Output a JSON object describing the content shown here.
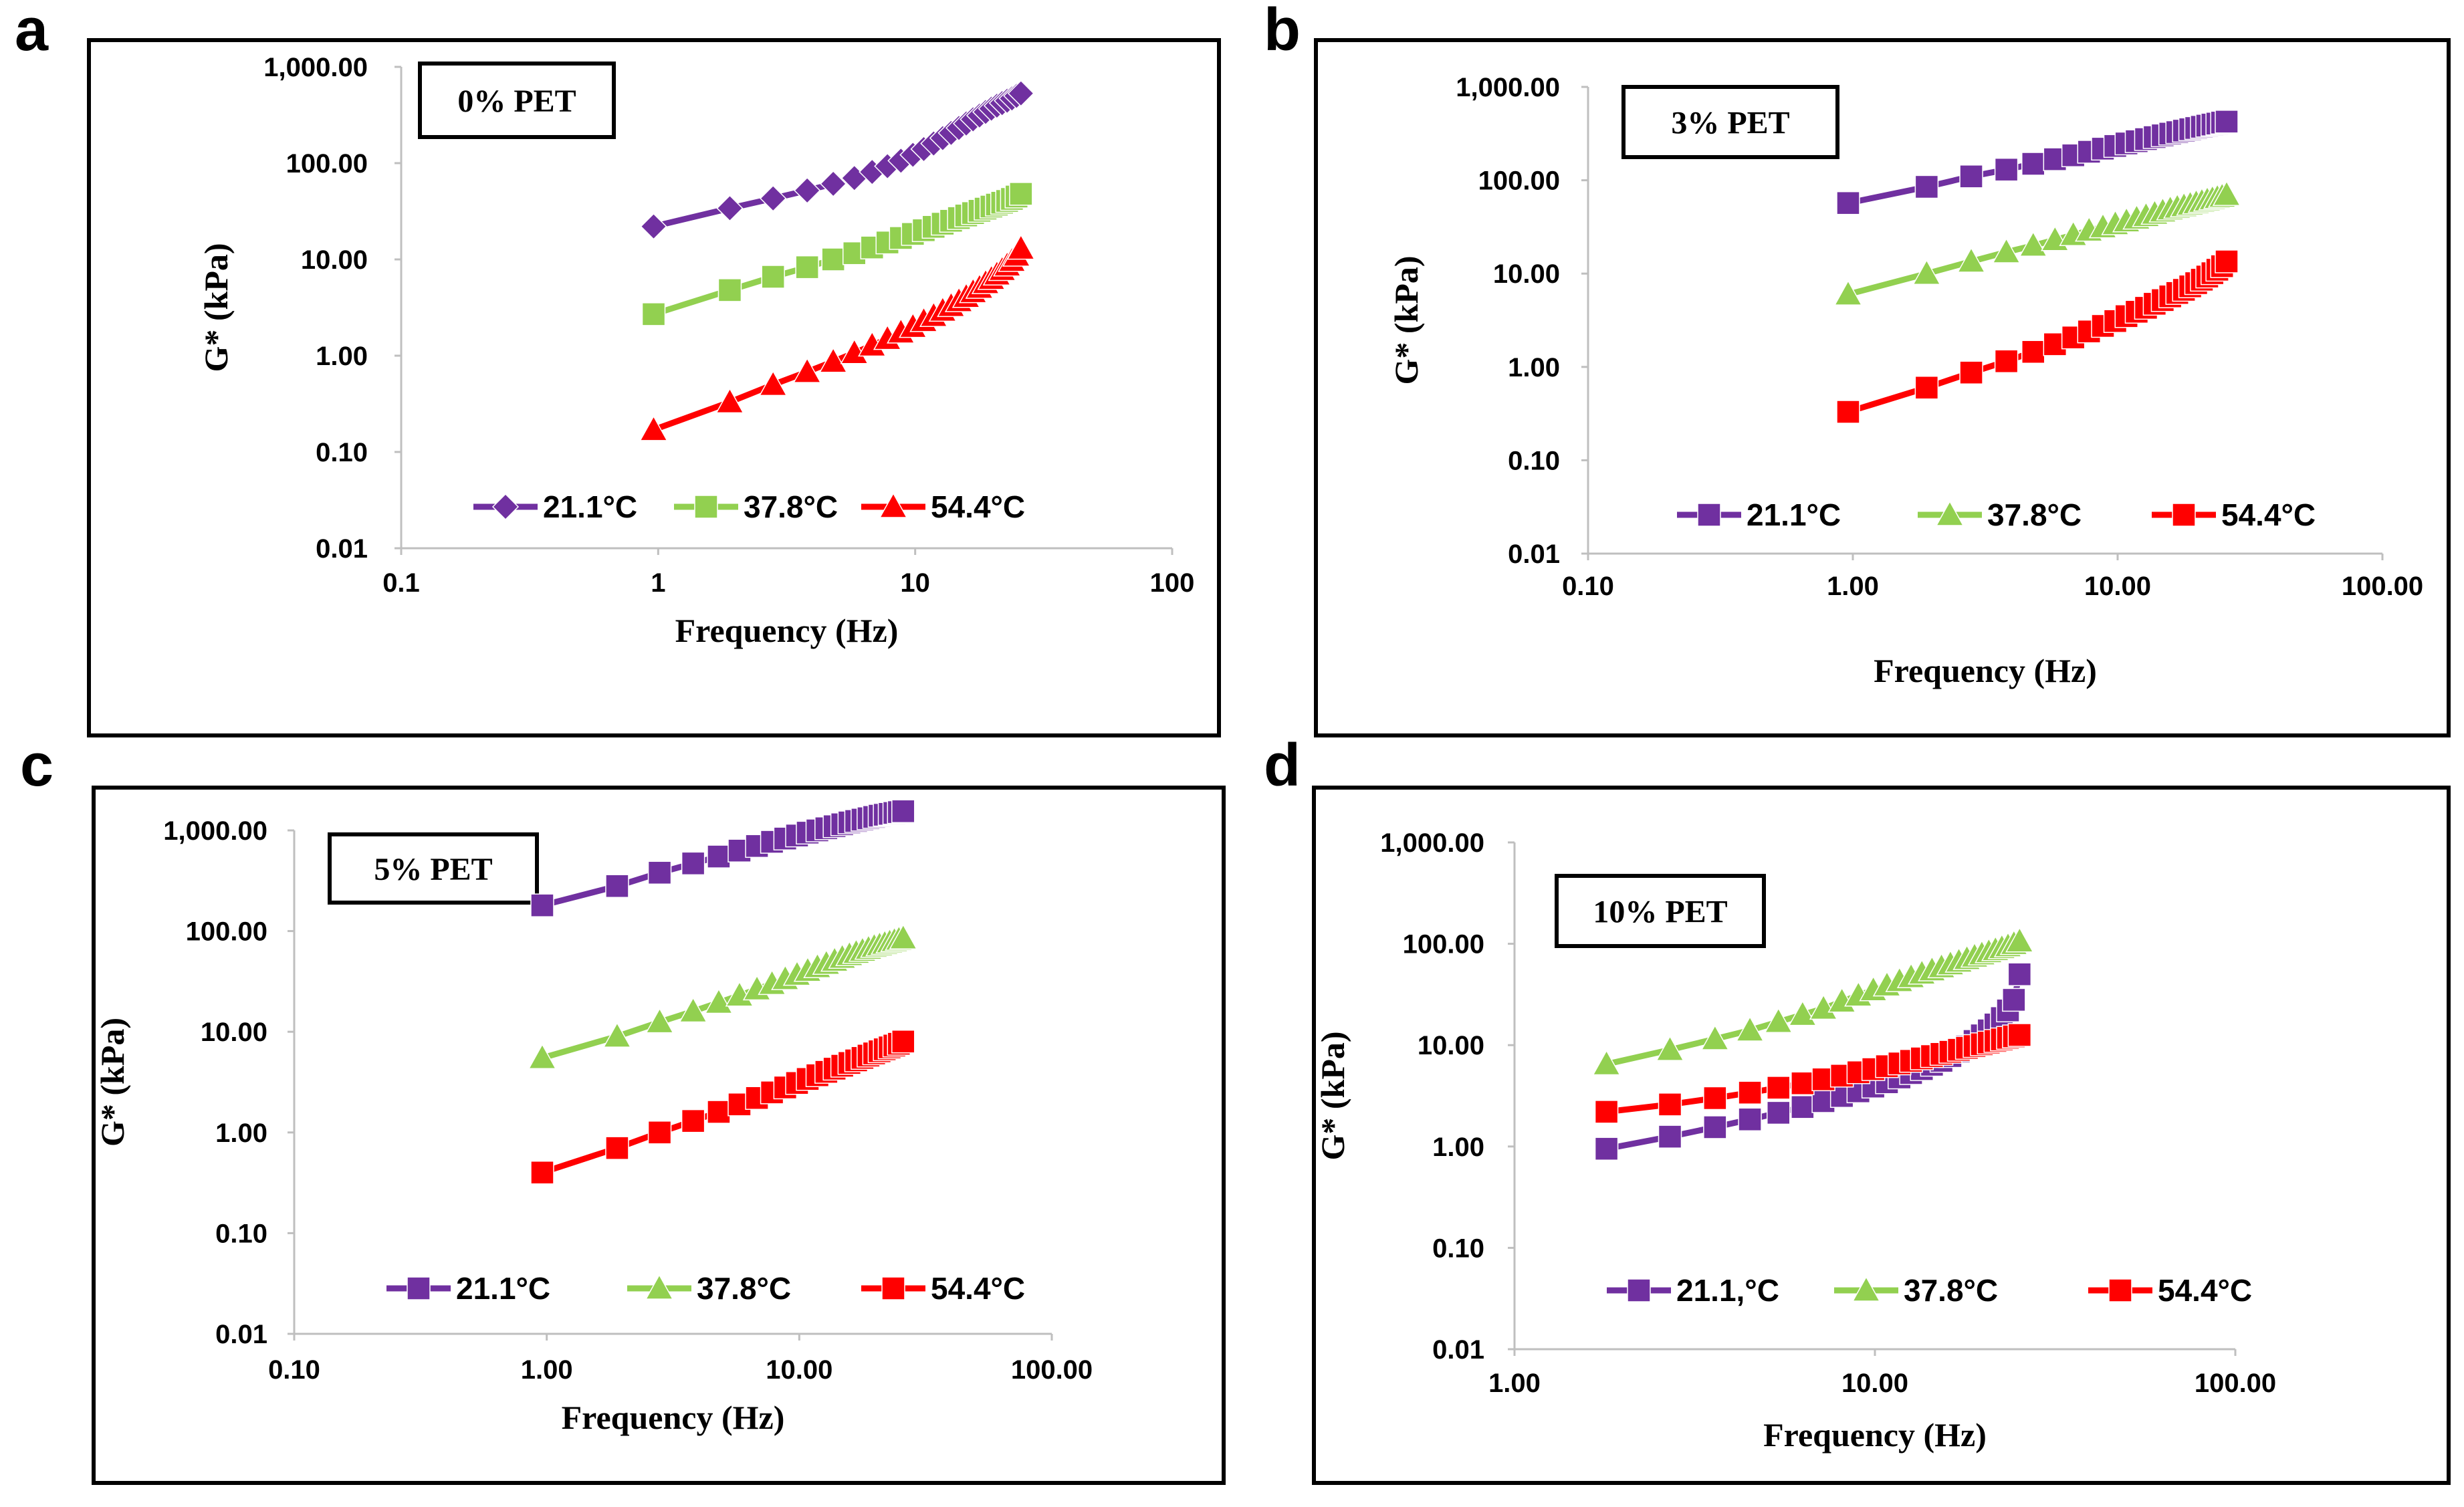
{
  "figure": {
    "panels": [
      {
        "letter": "a",
        "label": "0% PET"
      },
      {
        "letter": "b",
        "label": "3% PET"
      },
      {
        "letter": "c",
        "label": "5% PET"
      },
      {
        "letter": "d",
        "label": "10% PET"
      }
    ]
  },
  "colors": {
    "series_21": "#7030a0",
    "series_37": "#92d050",
    "series_54": "#ff0000",
    "axis": "#bfbfbf",
    "frame": "#000000"
  },
  "chart_data": [
    {
      "type": "line",
      "panel": "a",
      "title": "0% PET",
      "xlabel": "Frequency (Hz)",
      "ylabel": "G* (kPa)",
      "xscale": "log",
      "yscale": "log",
      "xlim": [
        0.1,
        100
      ],
      "ylim": [
        0.01,
        1000
      ],
      "xticks": [
        "0.1",
        "1",
        "10",
        "100"
      ],
      "yticks": [
        "0.01",
        "0.10",
        "1.00",
        "10.00",
        "100.00",
        "1,000.00"
      ],
      "legend_position": "bottom-center",
      "series": [
        {
          "name": "21.1°C",
          "marker": "diamond",
          "color": "#7030a0",
          "x": [
            0.96,
            1.9,
            2.8,
            3.8,
            4.8,
            5.8,
            6.8,
            7.8,
            8.8,
            9.8,
            10.8,
            11.8,
            12.8,
            13.8,
            14.8,
            15.8,
            16.8,
            17.8,
            18.8,
            19.8,
            20.8,
            21.8,
            22.8,
            23.8,
            24.8,
            25.8
          ],
          "y": [
            22,
            34,
            43,
            52,
            61,
            70,
            81,
            93,
            106,
            122,
            140,
            160,
            182,
            206,
            232,
            258,
            285,
            312,
            340,
            368,
            395,
            420,
            445,
            470,
            500,
            530
          ]
        },
        {
          "name": "37.8°C",
          "marker": "square",
          "color": "#92d050",
          "x": [
            0.96,
            1.9,
            2.8,
            3.8,
            4.8,
            5.8,
            6.8,
            7.8,
            8.8,
            9.8,
            10.8,
            11.8,
            12.8,
            13.8,
            14.8,
            15.8,
            16.8,
            17.8,
            18.8,
            19.8,
            20.8,
            21.8,
            22.8,
            23.8,
            24.8,
            25.8
          ],
          "y": [
            2.7,
            4.8,
            6.6,
            8.3,
            10.0,
            11.6,
            13.3,
            15.0,
            16.7,
            18.4,
            20.1,
            21.8,
            23.5,
            25.2,
            26.9,
            28.6,
            30.3,
            32.0,
            33.7,
            35.4,
            37.1,
            38.8,
            40.5,
            42.5,
            45.0,
            48.0
          ]
        },
        {
          "name": "54.4°C",
          "marker": "triangle",
          "color": "#ff0000",
          "x": [
            0.96,
            1.9,
            2.8,
            3.8,
            4.8,
            5.8,
            6.8,
            7.8,
            8.8,
            9.8,
            10.8,
            11.8,
            12.8,
            13.8,
            14.8,
            15.8,
            16.8,
            17.8,
            18.8,
            19.8,
            20.8,
            21.8,
            22.8,
            23.8,
            24.8,
            25.8
          ],
          "y": [
            0.17,
            0.33,
            0.5,
            0.68,
            0.87,
            1.07,
            1.28,
            1.5,
            1.75,
            2.0,
            2.3,
            2.6,
            2.95,
            3.3,
            3.7,
            4.1,
            4.6,
            5.1,
            5.7,
            6.3,
            7.0,
            7.8,
            8.7,
            9.7,
            11.0,
            13.0
          ]
        }
      ]
    },
    {
      "type": "line",
      "panel": "b",
      "title": "3% PET",
      "xlabel": "Frequency (Hz)",
      "ylabel": "G* (kPa)",
      "xscale": "log",
      "yscale": "log",
      "xlim": [
        0.1,
        100
      ],
      "ylim": [
        0.01,
        1000
      ],
      "xticks": [
        "0.10",
        "1.00",
        "10.00",
        "100.00"
      ],
      "yticks": [
        "0.01",
        "0.10",
        "1.00",
        "10.00",
        "100.00",
        "1,000.00"
      ],
      "legend_position": "bottom-center",
      "series": [
        {
          "name": "21.1°C",
          "marker": "square",
          "color": "#7030a0",
          "x": [
            0.96,
            1.9,
            2.8,
            3.8,
            4.8,
            5.8,
            6.8,
            7.8,
            8.8,
            9.8,
            10.8,
            11.8,
            12.8,
            13.8,
            14.8,
            15.8,
            16.8,
            17.8,
            18.8,
            19.8,
            20.8,
            21.8,
            22.8,
            23.8,
            24.8,
            25.8
          ],
          "y": [
            57,
            85,
            110,
            130,
            150,
            168,
            185,
            202,
            218,
            233,
            248,
            262,
            276,
            290,
            303,
            316,
            328,
            340,
            352,
            363,
            374,
            385,
            395,
            405,
            415,
            425
          ]
        },
        {
          "name": "37.8°C",
          "marker": "triangle",
          "color": "#92d050",
          "x": [
            0.96,
            1.9,
            2.8,
            3.8,
            4.8,
            5.8,
            6.8,
            7.8,
            8.8,
            9.8,
            10.8,
            11.8,
            12.8,
            13.8,
            14.8,
            15.8,
            16.8,
            17.8,
            18.8,
            19.8,
            20.8,
            21.8,
            22.8,
            23.8,
            24.8,
            25.8
          ],
          "y": [
            6,
            10,
            13.5,
            17,
            20,
            23,
            26,
            29,
            31.5,
            34,
            36.5,
            39,
            41.5,
            44,
            46.5,
            49,
            51,
            53,
            55,
            57,
            59,
            61,
            63,
            65,
            67,
            70
          ]
        },
        {
          "name": "54.4°C",
          "marker": "square",
          "color": "#ff0000",
          "x": [
            0.96,
            1.9,
            2.8,
            3.8,
            4.8,
            5.8,
            6.8,
            7.8,
            8.8,
            9.8,
            10.8,
            11.8,
            12.8,
            13.8,
            14.8,
            15.8,
            16.8,
            17.8,
            18.8,
            19.8,
            20.8,
            21.8,
            22.8,
            23.8,
            24.8,
            25.8
          ],
          "y": [
            0.33,
            0.6,
            0.87,
            1.15,
            1.45,
            1.75,
            2.07,
            2.4,
            2.75,
            3.1,
            3.5,
            3.9,
            4.3,
            4.75,
            5.2,
            5.7,
            6.2,
            6.7,
            7.3,
            7.9,
            8.6,
            9.3,
            10.1,
            11.0,
            12.0,
            13.5
          ]
        }
      ]
    },
    {
      "type": "line",
      "panel": "c",
      "title": "5% PET",
      "xlabel": "Frequency (Hz)",
      "ylabel": "G* (kPa)",
      "xscale": "log",
      "yscale": "log",
      "xlim": [
        0.1,
        100
      ],
      "ylim": [
        0.01,
        1000
      ],
      "xticks": [
        "0.10",
        "1.00",
        "10.00",
        "100.00"
      ],
      "yticks": [
        "0.01",
        "0.10",
        "1.00",
        "10.00",
        "100.00",
        "1,000.00"
      ],
      "legend_position": "bottom-center",
      "series": [
        {
          "name": "21.1°C",
          "marker": "square",
          "color": "#7030a0",
          "x": [
            0.96,
            1.9,
            2.8,
            3.8,
            4.8,
            5.8,
            6.8,
            7.8,
            8.8,
            9.8,
            10.8,
            11.8,
            12.8,
            13.8,
            14.8,
            15.8,
            16.8,
            17.8,
            18.8,
            19.8,
            20.8,
            21.8,
            22.8,
            23.8,
            24.8,
            25.8
          ],
          "y": [
            180,
            280,
            380,
            470,
            550,
            630,
            700,
            770,
            830,
            890,
            950,
            1000,
            1050,
            1100,
            1150,
            1200,
            1240,
            1280,
            1320,
            1360,
            1400,
            1430,
            1460,
            1490,
            1520,
            1550
          ]
        },
        {
          "name": "37.8°C",
          "marker": "triangle",
          "color": "#92d050",
          "x": [
            0.96,
            1.9,
            2.8,
            3.8,
            4.8,
            5.8,
            6.8,
            7.8,
            8.8,
            9.8,
            10.8,
            11.8,
            12.8,
            13.8,
            14.8,
            15.8,
            16.8,
            17.8,
            18.8,
            19.8,
            20.8,
            21.8,
            22.8,
            23.8,
            24.8,
            25.8
          ],
          "y": [
            5.5,
            9,
            12.5,
            16,
            19.5,
            23,
            26.5,
            30,
            33.5,
            37,
            40.5,
            44,
            47.5,
            51,
            54.5,
            58,
            61,
            64,
            67,
            70,
            72.5,
            75,
            77.5,
            80,
            82.5,
            85
          ]
        },
        {
          "name": "54.4°C",
          "marker": "square",
          "color": "#ff0000",
          "x": [
            0.96,
            1.9,
            2.8,
            3.8,
            4.8,
            5.8,
            6.8,
            7.8,
            8.8,
            9.8,
            10.8,
            11.8,
            12.8,
            13.8,
            14.8,
            15.8,
            16.8,
            17.8,
            18.8,
            19.8,
            20.8,
            21.8,
            22.8,
            23.8,
            24.8,
            25.8
          ],
          "y": [
            0.4,
            0.7,
            1.0,
            1.3,
            1.6,
            1.9,
            2.2,
            2.5,
            2.8,
            3.1,
            3.4,
            3.7,
            4.0,
            4.3,
            4.6,
            4.9,
            5.2,
            5.5,
            5.8,
            6.1,
            6.4,
            6.7,
            7.0,
            7.3,
            7.6,
            8.0
          ]
        }
      ]
    },
    {
      "type": "line",
      "panel": "d",
      "title": "10% PET",
      "xlabel": "Frequency (Hz)",
      "ylabel": "G* (kPa)",
      "xscale": "log",
      "yscale": "log",
      "xlim": [
        1,
        100
      ],
      "ylim": [
        0.01,
        1000
      ],
      "xticks": [
        "1.00",
        "10.00",
        "100.00"
      ],
      "yticks": [
        "0.01",
        "0.10",
        "1.00",
        "10.00",
        "100.00",
        "1,000.00"
      ],
      "legend_position": "bottom-center",
      "series": [
        {
          "name": "21.1,°C",
          "marker": "square",
          "color": "#7030a0",
          "x": [
            1.8,
            2.7,
            3.6,
            4.5,
            5.4,
            6.3,
            7.2,
            8.1,
            9.0,
            9.9,
            10.8,
            11.7,
            12.6,
            13.5,
            14.4,
            15.3,
            16.2,
            17.1,
            18.0,
            18.9,
            19.8,
            20.7,
            21.6,
            22.5,
            23.4,
            24.3,
            25.2
          ],
          "y": [
            0.95,
            1.25,
            1.55,
            1.85,
            2.15,
            2.45,
            2.8,
            3.15,
            3.5,
            3.9,
            4.3,
            4.8,
            5.3,
            5.8,
            6.4,
            7.0,
            7.8,
            8.7,
            9.7,
            11,
            12.5,
            14,
            16,
            18.5,
            22,
            28,
            50
          ]
        },
        {
          "name": "37.8°C",
          "marker": "triangle",
          "color": "#92d050",
          "x": [
            1.8,
            2.7,
            3.6,
            4.5,
            5.4,
            6.3,
            7.2,
            8.1,
            9.0,
            9.9,
            10.8,
            11.7,
            12.6,
            13.5,
            14.4,
            15.3,
            16.2,
            17.1,
            18.0,
            18.9,
            19.8,
            20.7,
            21.6,
            22.5,
            23.4,
            24.3,
            25.2
          ],
          "y": [
            6.5,
            9,
            11.5,
            14,
            17,
            20,
            23,
            27,
            31,
            35,
            39,
            43,
            47,
            51,
            55,
            59,
            63,
            67,
            71,
            75,
            79,
            83,
            87,
            91,
            95,
            100,
            106
          ]
        },
        {
          "name": "54.4°C",
          "marker": "square",
          "color": "#ff0000",
          "x": [
            1.8,
            2.7,
            3.6,
            4.5,
            5.4,
            6.3,
            7.2,
            8.1,
            9.0,
            9.9,
            10.8,
            11.7,
            12.6,
            13.5,
            14.4,
            15.3,
            16.2,
            17.1,
            18.0,
            18.9,
            19.8,
            20.7,
            21.6,
            22.5,
            23.4,
            24.3,
            25.2
          ],
          "y": [
            2.2,
            2.6,
            3.0,
            3.4,
            3.8,
            4.2,
            4.6,
            5.0,
            5.4,
            5.8,
            6.2,
            6.6,
            7.0,
            7.4,
            7.8,
            8.2,
            8.6,
            9.0,
            9.4,
            9.8,
            10.2,
            10.6,
            11.0,
            11.4,
            11.8,
            12.2,
            12.6
          ]
        }
      ]
    }
  ]
}
